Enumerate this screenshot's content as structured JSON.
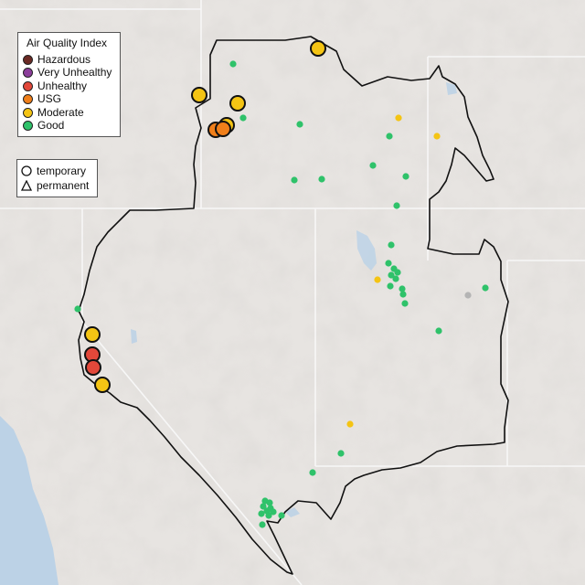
{
  "legend": {
    "title": "Air Quality Index",
    "categories": [
      {
        "label": "Hazardous",
        "color": "#6b2a24"
      },
      {
        "label": "Very Unhealthy",
        "color": "#8b3d9a"
      },
      {
        "label": "Unhealthy",
        "color": "#e2483a"
      },
      {
        "label": "USG",
        "color": "#f07f1a"
      },
      {
        "label": "Moderate",
        "color": "#f4c414"
      },
      {
        "label": "Good",
        "color": "#2fc26a"
      }
    ]
  },
  "monitor_types": {
    "temporary_label": "temporary",
    "permanent_label": "permanent"
  },
  "colors": {
    "background": "#e7e4e1",
    "region_outline": "#111111",
    "state_lines": "#f7f7f7",
    "water": "#bcd2e6",
    "no_data": "#b4b4b4"
  }
}
